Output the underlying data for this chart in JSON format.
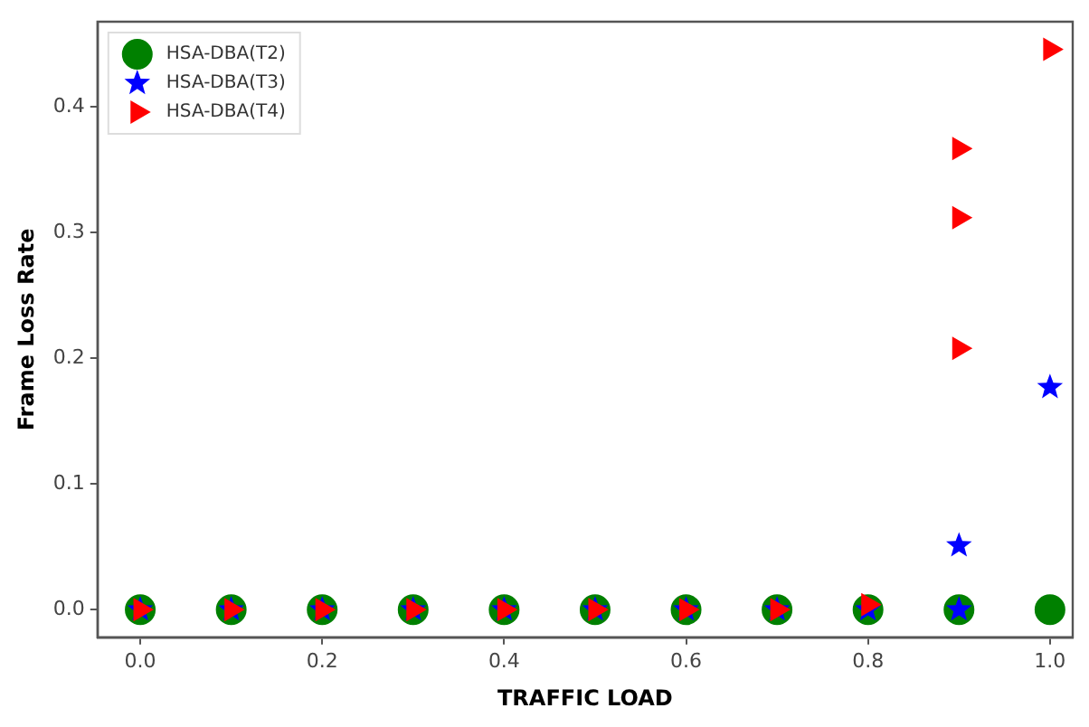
{
  "chart_data": {
    "type": "scatter",
    "xlabel": "TRAFFIC LOAD",
    "ylabel": "Frame Loss Rate",
    "xlim": [
      -0.047,
      1.025
    ],
    "ylim": [
      -0.022,
      0.468
    ],
    "xticks": [
      {
        "value": 0,
        "label": "0.0"
      },
      0.2,
      0.4,
      0.6,
      0.8,
      {
        "value": 1,
        "label": "1.0"
      }
    ],
    "yticks": [
      {
        "value": 0,
        "label": "0.0"
      },
      0.1,
      0.2,
      0.3,
      0.4
    ],
    "grid": false,
    "legend": "top left",
    "series": [
      {
        "name": "HSA-DBA(T2)",
        "color": "#008000",
        "marker": "circle",
        "x": [
          0,
          0.1,
          0.2,
          0.3,
          0.4,
          0.5,
          0.6,
          0.7,
          0.8,
          0.9,
          1.0
        ],
        "values": [
          0,
          0,
          0,
          0,
          0,
          0,
          0,
          0,
          0,
          0,
          0
        ]
      },
      {
        "name": "HSA-DBA(T3)",
        "color": "#0000ff",
        "marker": "star",
        "x": [
          0,
          0.1,
          0.2,
          0.3,
          0.4,
          0.5,
          0.6,
          0.7,
          0.8,
          0.9,
          0.9,
          1.0
        ],
        "values": [
          0,
          0,
          0,
          0,
          0,
          0,
          0,
          0,
          0,
          0,
          0.051,
          0.177
        ]
      },
      {
        "name": "HSA-DBA(T4)",
        "color": "#ff0000",
        "marker": "triangle",
        "x": [
          0,
          0.1,
          0.2,
          0.3,
          0.4,
          0.5,
          0.6,
          0.7,
          0.8,
          0.9,
          0.9,
          0.9,
          1.0
        ],
        "values": [
          0,
          0,
          0,
          0,
          0,
          0,
          0,
          0,
          0.004,
          0.208,
          0.312,
          0.367,
          0.446
        ]
      }
    ]
  }
}
